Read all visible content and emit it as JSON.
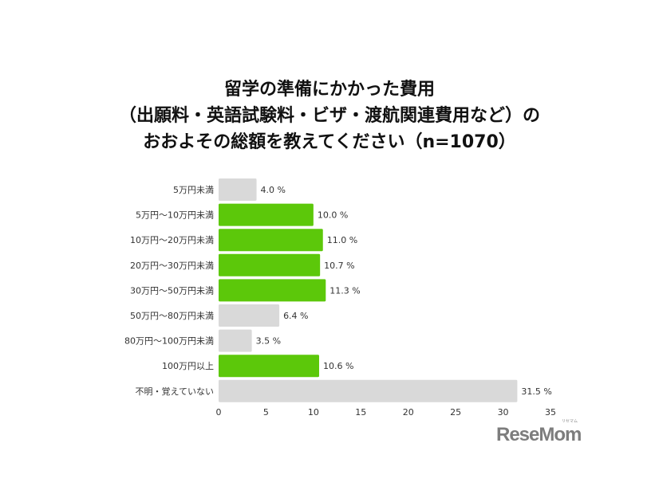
{
  "chart_data": {
    "type": "bar",
    "orientation": "horizontal",
    "title": [
      "留学の準備にかかった費用",
      "（出願料・英語試験料・ビザ・渡航関連費用など）の",
      "おおよその総額を教えてください（n=1070）"
    ],
    "categories": [
      "5万円未満",
      "5万円～10万円未満",
      "10万円～20万円未満",
      "20万円～30万円未満",
      "30万円～50万円未満",
      "50万円～80万円未満",
      "80万円～100万円未満",
      "100万円以上",
      "不明・覚えていない"
    ],
    "values": [
      4.0,
      10.0,
      11.0,
      10.7,
      11.3,
      6.4,
      3.5,
      10.6,
      31.5
    ],
    "value_labels": [
      "4.0 %",
      "10.0 %",
      "11.0 %",
      "10.7 %",
      "11.3 %",
      "6.4 %",
      "3.5 %",
      "10.6 %",
      "31.5 %"
    ],
    "highlighted": [
      false,
      true,
      true,
      true,
      true,
      false,
      false,
      true,
      false
    ],
    "xlim": [
      0,
      35
    ],
    "xticks": [
      "0",
      "5",
      "10",
      "15",
      "20",
      "25",
      "30",
      "35"
    ],
    "grid": false,
    "colors": {
      "highlight": "#5cc80a",
      "default": "#d9d9d9"
    }
  },
  "logo": {
    "text": "ReseMom",
    "small": "リセマム"
  }
}
